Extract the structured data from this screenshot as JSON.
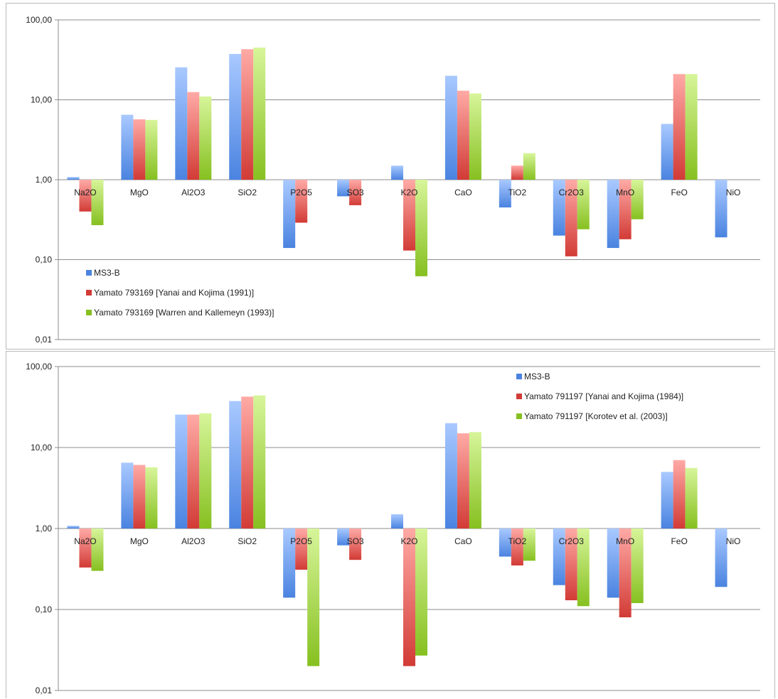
{
  "colors": {
    "MS3-B": [
      "#4a83e0",
      "#a9c9ff"
    ],
    "yanai": [
      "#d23b36",
      "#ffaaa6"
    ],
    "green": [
      "#86c020",
      "#d7f59a"
    ]
  },
  "chart_data": [
    {
      "type": "bar",
      "title": "",
      "xlabel": "",
      "ylabel": "",
      "yscale": "log",
      "ylim": [
        0.01,
        100
      ],
      "baseline": 1,
      "y_tick_labels": [
        "0,01",
        "0,10",
        "1,00",
        "10,00",
        "100,00"
      ],
      "grid": "horizontal",
      "legend_position": "bottom-left",
      "categories": [
        "Na2O",
        "MgO",
        "Al2O3",
        "SiO2",
        "P2O5",
        "SO3",
        "K2O",
        "CaO",
        "TiO2",
        "Cr2O3",
        "MnO",
        "FeO",
        "NiO"
      ],
      "series": [
        {
          "name": "MS3-B",
          "color_key": "MS3-B",
          "values": [
            1.08,
            6.5,
            25.5,
            37.5,
            0.14,
            0.62,
            1.5,
            20.0,
            0.45,
            0.2,
            0.14,
            5.0,
            0.19
          ]
        },
        {
          "name": "Yamato 793169 [Yanai and Kojima (1991)]",
          "color_key": "yanai",
          "values": [
            0.4,
            5.7,
            12.5,
            43.0,
            0.29,
            0.48,
            0.13,
            13.0,
            1.5,
            0.11,
            0.18,
            21.0,
            null
          ]
        },
        {
          "name": "Yamato 793169 [Warren and Kallemeyn (1993)]",
          "color_key": "green",
          "values": [
            0.27,
            5.6,
            11.0,
            45.0,
            null,
            null,
            0.062,
            12.0,
            2.15,
            0.24,
            0.32,
            21.0,
            null
          ]
        }
      ]
    },
    {
      "type": "bar",
      "title": "",
      "xlabel": "",
      "ylabel": "",
      "yscale": "log",
      "ylim": [
        0.01,
        100
      ],
      "baseline": 1,
      "y_tick_labels": [
        "0,01",
        "0,10",
        "1,00",
        "10,00",
        "100,00"
      ],
      "grid": "horizontal",
      "legend_position": "top-right",
      "categories": [
        "Na2O",
        "MgO",
        "Al2O3",
        "SiO2",
        "P2O5",
        "SO3",
        "K2O",
        "CaO",
        "TiO2",
        "Cr2O3",
        "MnO",
        "FeO",
        "NiO"
      ],
      "series": [
        {
          "name": "MS3-B",
          "color_key": "MS3-B",
          "values": [
            1.08,
            6.5,
            25.5,
            37.5,
            0.14,
            0.62,
            1.5,
            20.0,
            0.45,
            0.2,
            0.14,
            5.0,
            0.19
          ]
        },
        {
          "name": "Yamato 791197  [Yanai and Kojima (1984)]",
          "color_key": "yanai",
          "values": [
            0.33,
            6.1,
            25.5,
            42.5,
            0.31,
            0.41,
            0.02,
            15.0,
            0.35,
            0.13,
            0.08,
            7.0,
            null
          ]
        },
        {
          "name": "Yamato 791197 [Korotev et al. (2003)]",
          "color_key": "green",
          "values": [
            0.3,
            5.7,
            26.5,
            44.0,
            0.02,
            null,
            0.027,
            15.5,
            0.4,
            0.11,
            0.12,
            5.6,
            null
          ]
        }
      ]
    }
  ]
}
